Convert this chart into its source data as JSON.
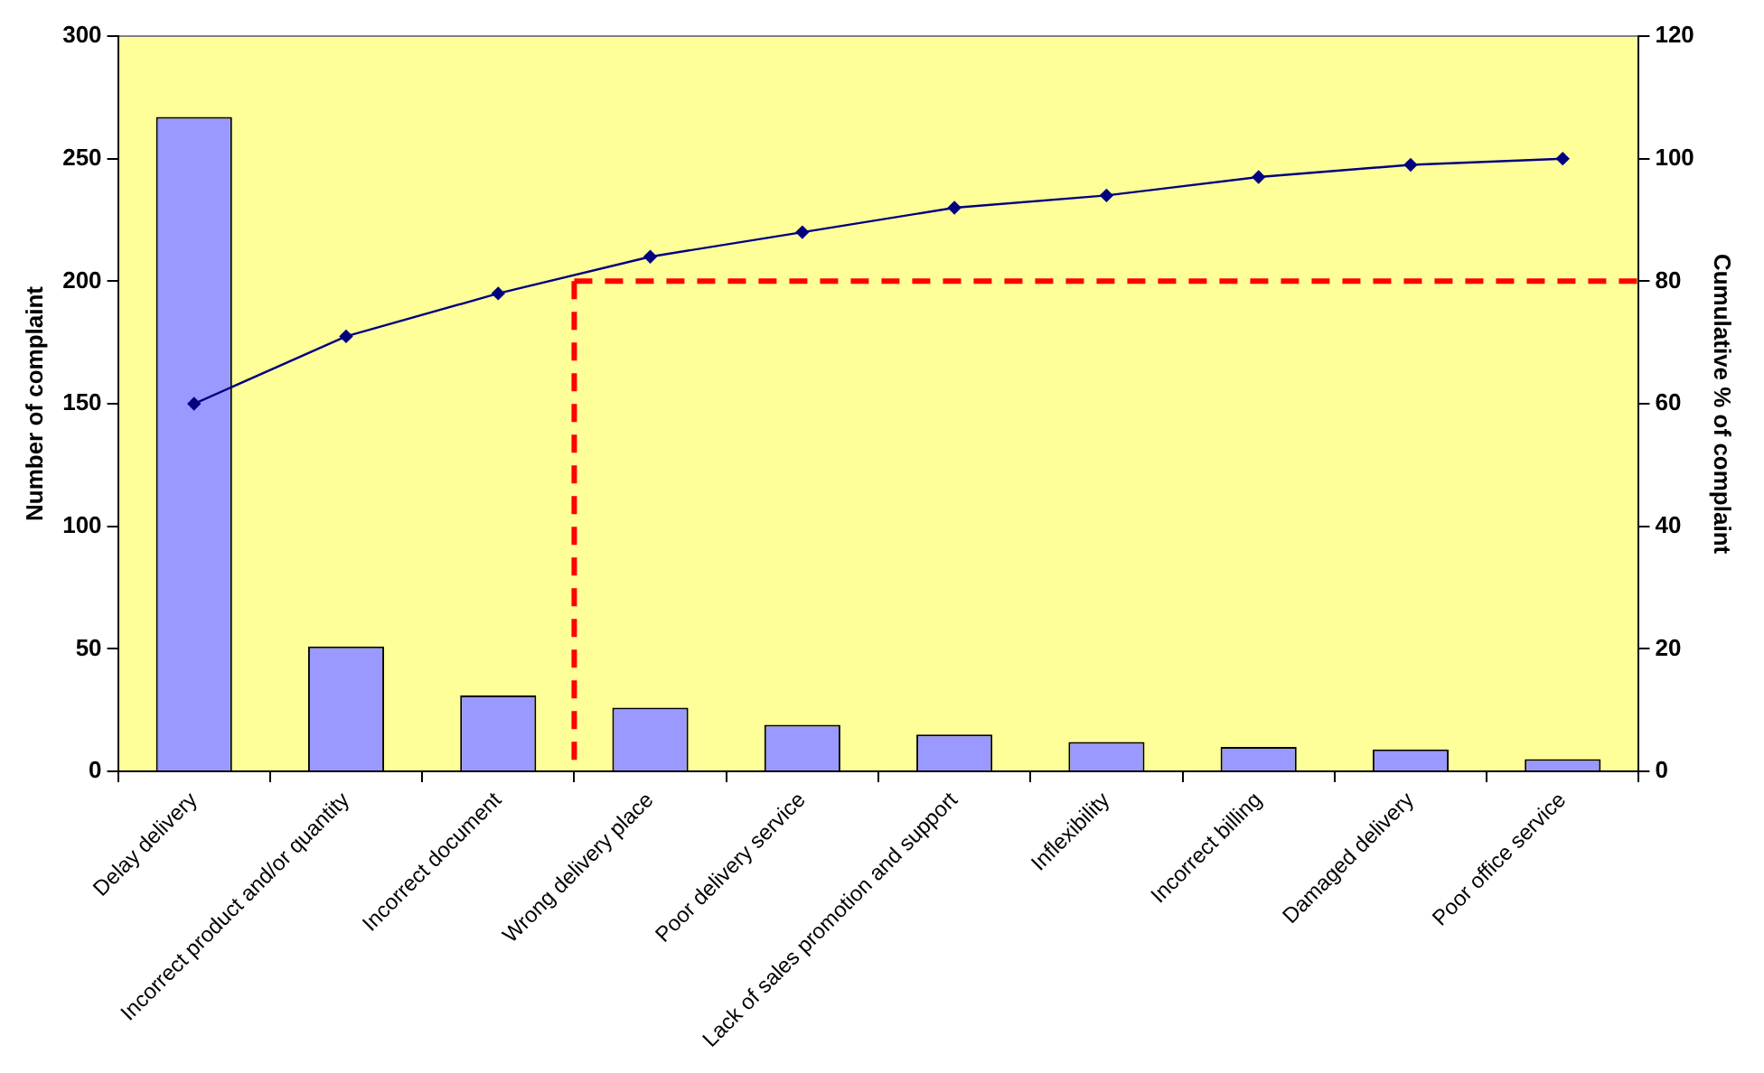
{
  "chart_data": {
    "type": "bar",
    "ylabel": "Number of complaint",
    "y2label": "Cumulative % of complaint",
    "categories": [
      "Delay delivery",
      "Incorrect product and/or quantity",
      "Incorrect document",
      "Wrong delivery place",
      "Poor delivery service",
      "Lack of sales promotion and support",
      "Inflexibility",
      "Incorrect billing",
      "Damaged delivery",
      "Poor office service"
    ],
    "series": [
      {
        "color": "#9999ff",
        "values": [
          267,
          51,
          31,
          26,
          19,
          15,
          12,
          10,
          9,
          5
        ]
      },
      {
        "type": "line",
        "axis": "y2",
        "color": "#000080",
        "marker": "diamond",
        "values": [
          60,
          71,
          78,
          84,
          88,
          92,
          94,
          97,
          99,
          100
        ]
      }
    ],
    "ylim": [
      0,
      300
    ],
    "yticks": [
      0,
      50,
      100,
      150,
      200,
      250,
      300
    ],
    "y2lim": [
      0,
      120
    ],
    "y2ticks": [
      0,
      20,
      40,
      60,
      80,
      100,
      120
    ],
    "ref_lines": [
      {
        "axis": "y2",
        "value": 80,
        "color": "#ff0000",
        "line_style": "dashed"
      },
      {
        "axis": "x",
        "value": "Wrong delivery place",
        "color": "#ff0000",
        "line_style": "dashed"
      }
    ],
    "grid": false,
    "legend": false
  }
}
